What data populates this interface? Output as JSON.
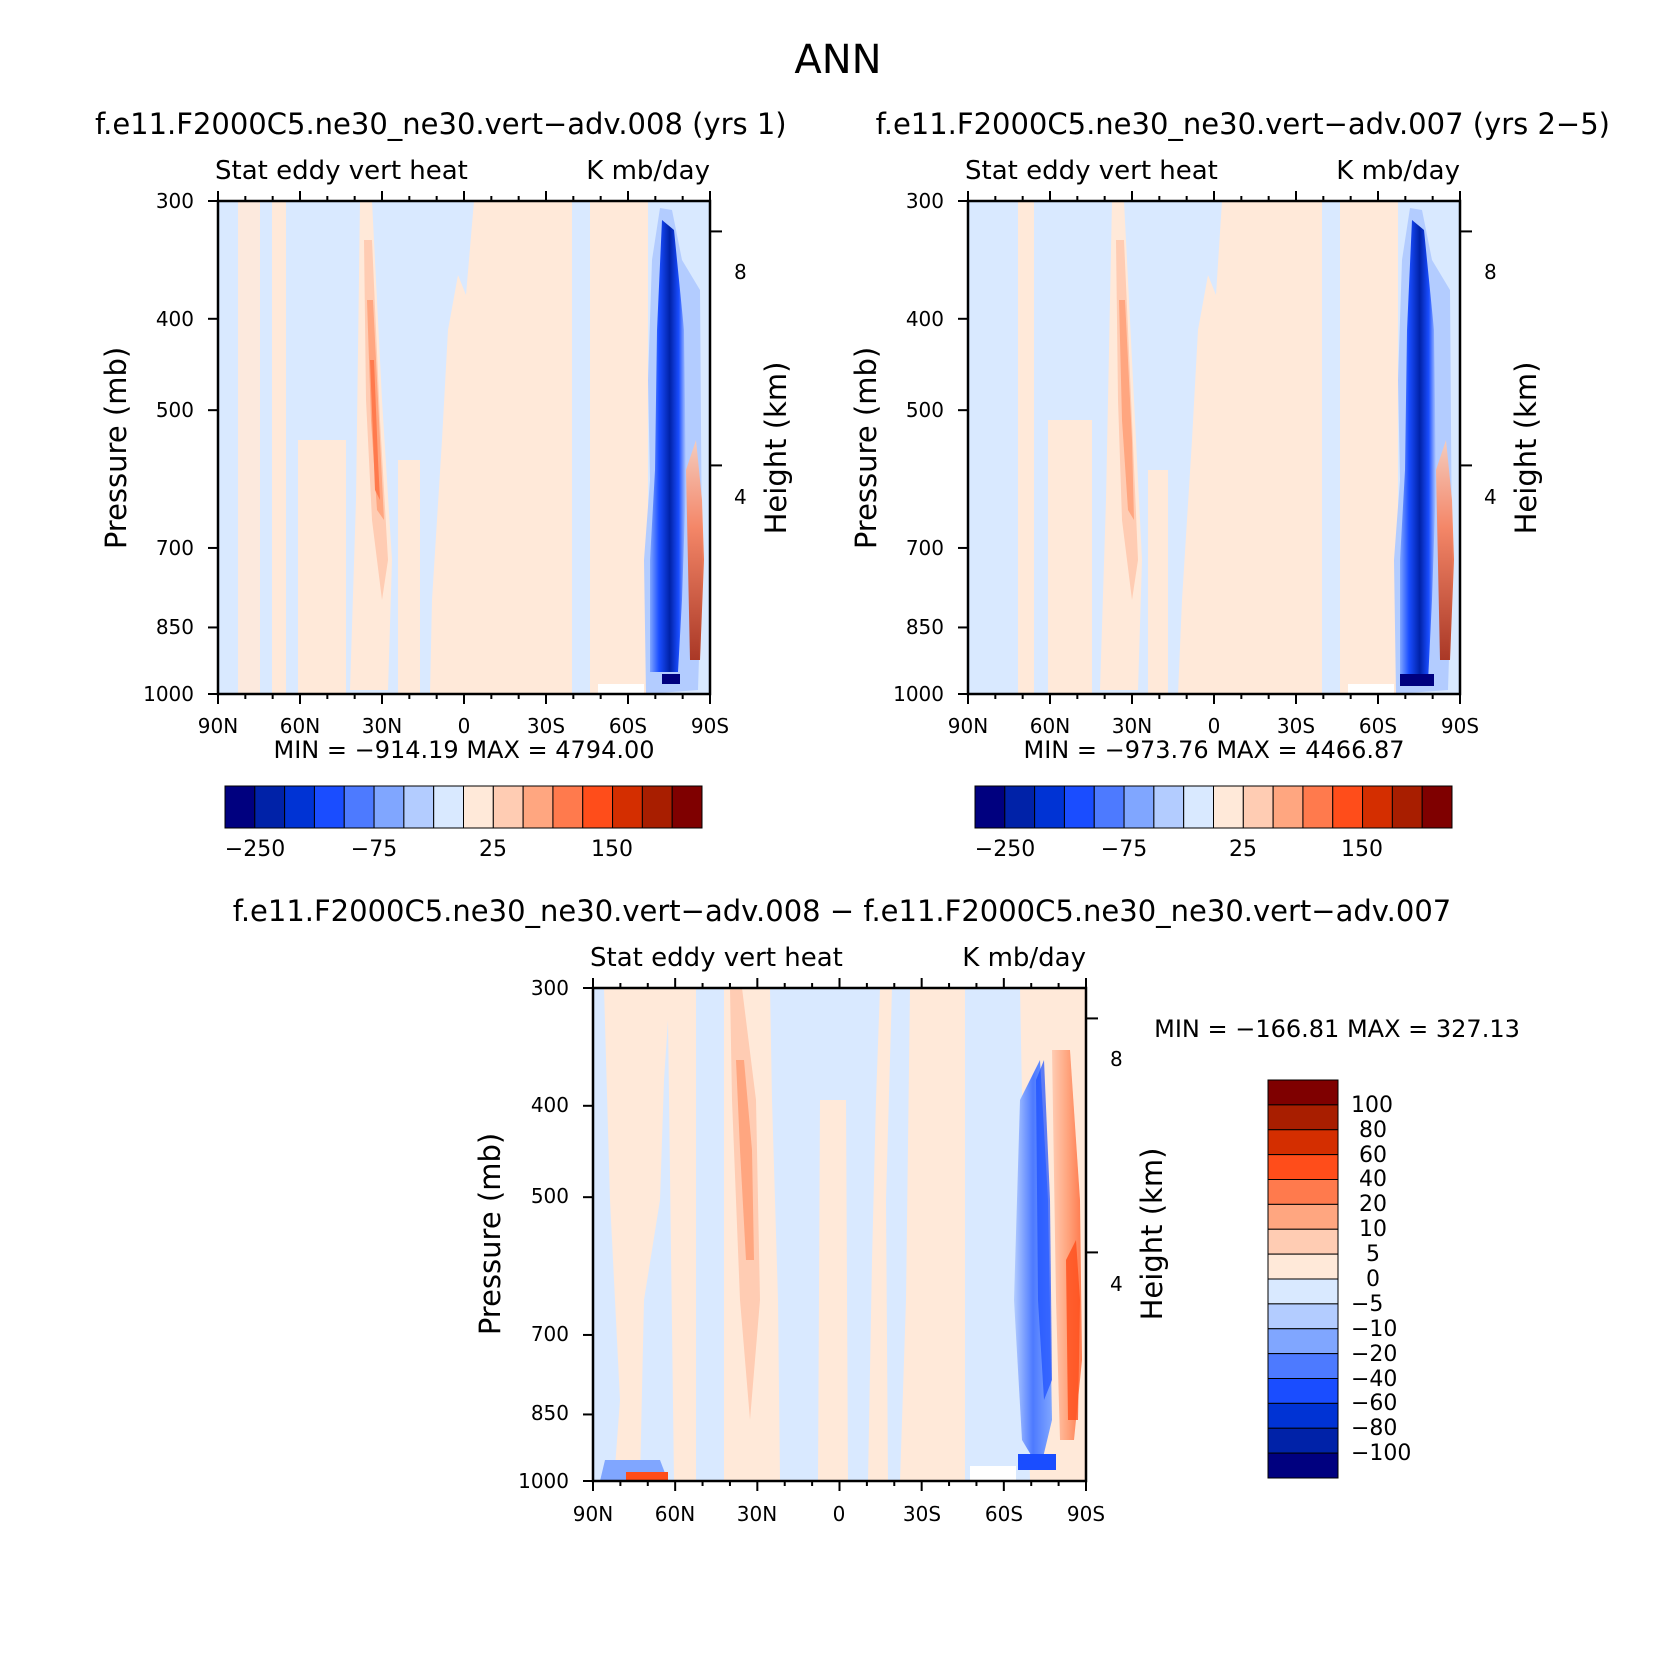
{
  "page_title": "ANN",
  "chart_data": [
    {
      "type": "heatmap",
      "case_title": "f.e11.F2000C5.ne30_ne30.vert−adv.008 (yrs 1)",
      "left_string": "Stat eddy vert heat",
      "right_string": "K mb/day",
      "ylabel": "Pressure (mb)",
      "ylabel_right": "Height (km)",
      "x_ticks": [
        "90N",
        "60N",
        "30N",
        "0",
        "30S",
        "60S",
        "90S"
      ],
      "y_ticks": [
        "300",
        "400",
        "500",
        "700",
        "850",
        "1000"
      ],
      "y2_ticks": [
        "8",
        "4"
      ],
      "min_max": "MIN = −914.19   MAX = 4794.00",
      "colorbar_labels": [
        "−250",
        "−75",
        "25",
        "150"
      ],
      "colors": [
        "#00007f",
        "#0022a8",
        "#0033d4",
        "#1a4dff",
        "#4d7aff",
        "#80a6ff",
        "#b3ccff",
        "#d9e9ff",
        "#ffe9d9",
        "#ffccb3",
        "#ffa680",
        "#ff7a4d",
        "#ff4d1a",
        "#d42e00",
        "#a81e00",
        "#7f0000"
      ],
      "xlim": [
        90,
        -90
      ],
      "ylim": [
        1000,
        300
      ]
    },
    {
      "type": "heatmap",
      "case_title": "f.e11.F2000C5.ne30_ne30.vert−adv.007 (yrs 2−5)",
      "left_string": "Stat eddy vert heat",
      "right_string": "K mb/day",
      "ylabel": "Pressure (mb)",
      "ylabel_right": "Height (km)",
      "x_ticks": [
        "90N",
        "60N",
        "30N",
        "0",
        "30S",
        "60S",
        "90S"
      ],
      "y_ticks": [
        "300",
        "400",
        "500",
        "700",
        "850",
        "1000"
      ],
      "y2_ticks": [
        "8",
        "4"
      ],
      "min_max": "MIN = −973.76   MAX = 4466.87",
      "colorbar_labels": [
        "−250",
        "−75",
        "25",
        "150"
      ],
      "colors": [
        "#00007f",
        "#0022a8",
        "#0033d4",
        "#1a4dff",
        "#4d7aff",
        "#80a6ff",
        "#b3ccff",
        "#d9e9ff",
        "#ffe9d9",
        "#ffccb3",
        "#ffa680",
        "#ff7a4d",
        "#ff4d1a",
        "#d42e00",
        "#a81e00",
        "#7f0000"
      ],
      "xlim": [
        90,
        -90
      ],
      "ylim": [
        1000,
        300
      ]
    },
    {
      "type": "heatmap",
      "case_title": "f.e11.F2000C5.ne30_ne30.vert−adv.008 − f.e11.F2000C5.ne30_ne30.vert−adv.007",
      "left_string": "Stat eddy vert heat",
      "right_string": "K mb/day",
      "ylabel": "Pressure (mb)",
      "ylabel_right": "Height (km)",
      "x_ticks": [
        "90N",
        "60N",
        "30N",
        "0",
        "30S",
        "60S",
        "90S"
      ],
      "y_ticks": [
        "300",
        "400",
        "500",
        "700",
        "850",
        "1000"
      ],
      "y2_ticks": [
        "8",
        "4"
      ],
      "min_max": "MIN = −166.81   MAX = 327.13",
      "colorbar_labels": [
        "100",
        "80",
        "60",
        "40",
        "20",
        "10",
        "5",
        "0",
        "−5",
        "−10",
        "−20",
        "−40",
        "−60",
        "−80",
        "−100"
      ],
      "colors": [
        "#7f0000",
        "#a81e00",
        "#d42e00",
        "#ff4d1a",
        "#ff7a4d",
        "#ffa680",
        "#ffccb3",
        "#ffe9d9",
        "#d9e9ff",
        "#b3ccff",
        "#80a6ff",
        "#4d7aff",
        "#1a4dff",
        "#0033d4",
        "#0022a8",
        "#00007f"
      ],
      "xlim": [
        90,
        -90
      ],
      "ylim": [
        1000,
        300
      ]
    }
  ]
}
